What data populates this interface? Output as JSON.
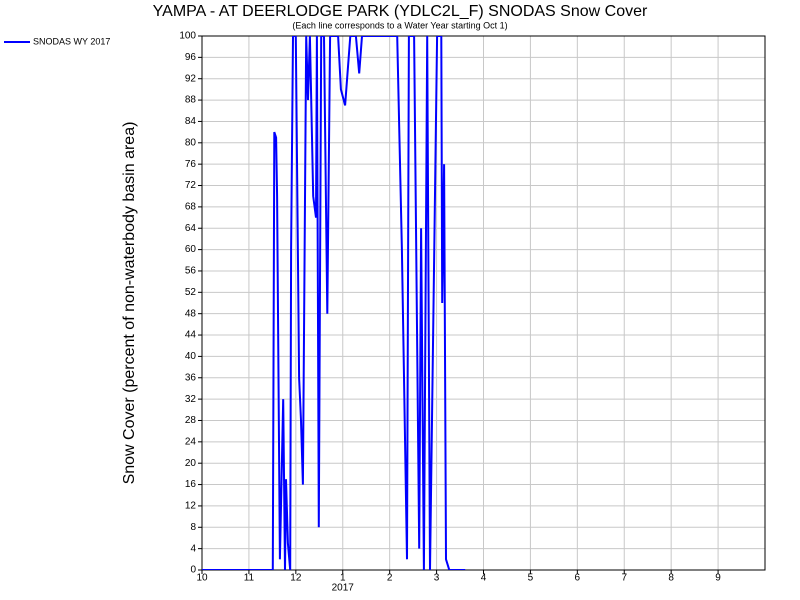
{
  "chart_data": {
    "type": "line",
    "title": "YAMPA - AT DEERLODGE PARK (YDLC2L_F) SNODAS Snow Cover",
    "subtitle": "(Each line corresponds to a Water Year starting Oct 1)",
    "y_label": "Snow Cover (percent of non-waterbody basin area)",
    "x_year_label": "2017",
    "x": [
      0,
      1.51,
      1.54,
      1.58,
      1.6,
      1.66,
      1.73,
      1.77,
      1.79,
      1.83,
      1.88,
      1.9,
      1.94,
      2.0,
      2.07,
      2.11,
      2.15,
      2.22,
      2.26,
      2.3,
      2.37,
      2.43,
      2.45,
      2.49,
      2.54,
      2.6,
      2.67,
      2.73,
      2.9,
      2.96,
      3.05,
      3.16,
      3.28,
      3.35,
      3.41,
      4.16,
      4.26,
      4.37,
      4.41,
      4.52,
      4.63,
      4.67,
      4.73,
      4.8,
      4.86,
      5.01,
      5.1,
      5.12,
      5.16,
      5.2,
      5.27,
      5.61
    ],
    "series": [
      {
        "name": "SNODAS WY 2017",
        "color": "#0000ff",
        "values": [
          0,
          0,
          82,
          81,
          70,
          2,
          32,
          0,
          17,
          5,
          0,
          60,
          100,
          100,
          36,
          28,
          16,
          100,
          88,
          100,
          70,
          66,
          100,
          8,
          100,
          100,
          48,
          100,
          100,
          90,
          87,
          100,
          100,
          93,
          100,
          100,
          60,
          2,
          100,
          100,
          4,
          64,
          0,
          100,
          0,
          100,
          100,
          50,
          76,
          2,
          0,
          0
        ]
      }
    ],
    "xlim": [
      0,
      12
    ],
    "xticks": [
      {
        "value": 0,
        "label": "10"
      },
      {
        "value": 1,
        "label": "11"
      },
      {
        "value": 2,
        "label": "12"
      },
      {
        "value": 3,
        "label": "1"
      },
      {
        "value": 4,
        "label": "2"
      },
      {
        "value": 5,
        "label": "3"
      },
      {
        "value": 6,
        "label": "4"
      },
      {
        "value": 7,
        "label": "5"
      },
      {
        "value": 8,
        "label": "6"
      },
      {
        "value": 9,
        "label": "7"
      },
      {
        "value": 10,
        "label": "8"
      },
      {
        "value": 11,
        "label": "9"
      }
    ],
    "ylim": [
      0,
      100
    ],
    "yticks": [
      0,
      4,
      8,
      12,
      16,
      20,
      24,
      28,
      32,
      36,
      40,
      44,
      48,
      52,
      56,
      60,
      64,
      68,
      72,
      76,
      80,
      84,
      88,
      92,
      96,
      100
    ],
    "grid": true
  }
}
